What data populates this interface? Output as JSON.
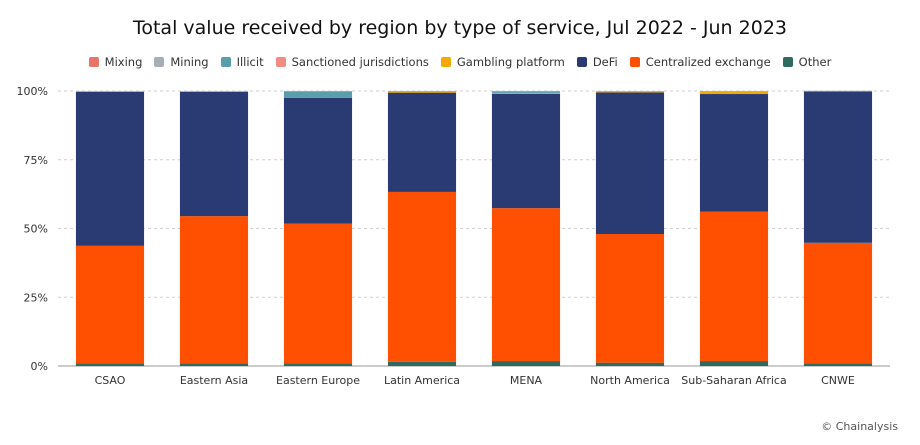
{
  "chart_data": {
    "type": "bar",
    "stacked": true,
    "title": "Total value received by region by type of service, Jul 2022 - Jun 2023",
    "xlabel": "",
    "ylabel": "",
    "ylim": [
      0,
      100
    ],
    "yticks": [
      "0%",
      "25%",
      "50%",
      "75%",
      "100%"
    ],
    "yticks_values": [
      0,
      25,
      50,
      75,
      100
    ],
    "grid": "horizontal-dashed",
    "legend_placement": "top",
    "categories": [
      "CSAO",
      "Eastern Asia",
      "Eastern Europe",
      "Latin America",
      "MENA",
      "North America",
      "Sub-Saharan Africa",
      "CNWE"
    ],
    "series": [
      {
        "name": "Other",
        "color": "#2e6b5e",
        "values": [
          1.0,
          1.0,
          1.0,
          1.5,
          1.8,
          1.2,
          1.8,
          1.0
        ]
      },
      {
        "name": "Centralized exchange",
        "color": "#fe5000",
        "values": [
          42.7,
          53.5,
          50.8,
          61.8,
          55.6,
          46.8,
          54.3,
          43.8
        ]
      },
      {
        "name": "DeFi",
        "color": "#2a3a72",
        "values": [
          56.0,
          45.2,
          45.8,
          36.1,
          41.6,
          51.5,
          42.8,
          55.0
        ]
      },
      {
        "name": "Gambling platform",
        "color": "#f5a800",
        "values": [
          0.1,
          0.1,
          0.2,
          0.6,
          0.3,
          0.3,
          0.8,
          0.1
        ]
      },
      {
        "name": "Sanctioned jurisdictions",
        "color": "#f28b82",
        "values": [
          0.0,
          0.0,
          0.0,
          0.0,
          0.0,
          0.0,
          0.0,
          0.0
        ]
      },
      {
        "name": "Illicit",
        "color": "#5a9eab",
        "values": [
          0.1,
          0.1,
          2.0,
          0.0,
          0.5,
          0.1,
          0.1,
          0.1
        ]
      },
      {
        "name": "Mining",
        "color": "#a8aeb5",
        "values": [
          0.1,
          0.1,
          0.2,
          0.0,
          0.2,
          0.1,
          0.2,
          0.1
        ]
      },
      {
        "name": "Mixing",
        "color": "#e8756a",
        "values": [
          0.0,
          0.0,
          0.0,
          0.0,
          0.0,
          0.0,
          0.0,
          0.0
        ]
      }
    ],
    "legend_order": [
      "Mixing",
      "Mining",
      "Illicit",
      "Sanctioned jurisdictions",
      "Gambling platform",
      "DeFi",
      "Centralized exchange",
      "Other"
    ]
  },
  "source": "© Chainalysis"
}
